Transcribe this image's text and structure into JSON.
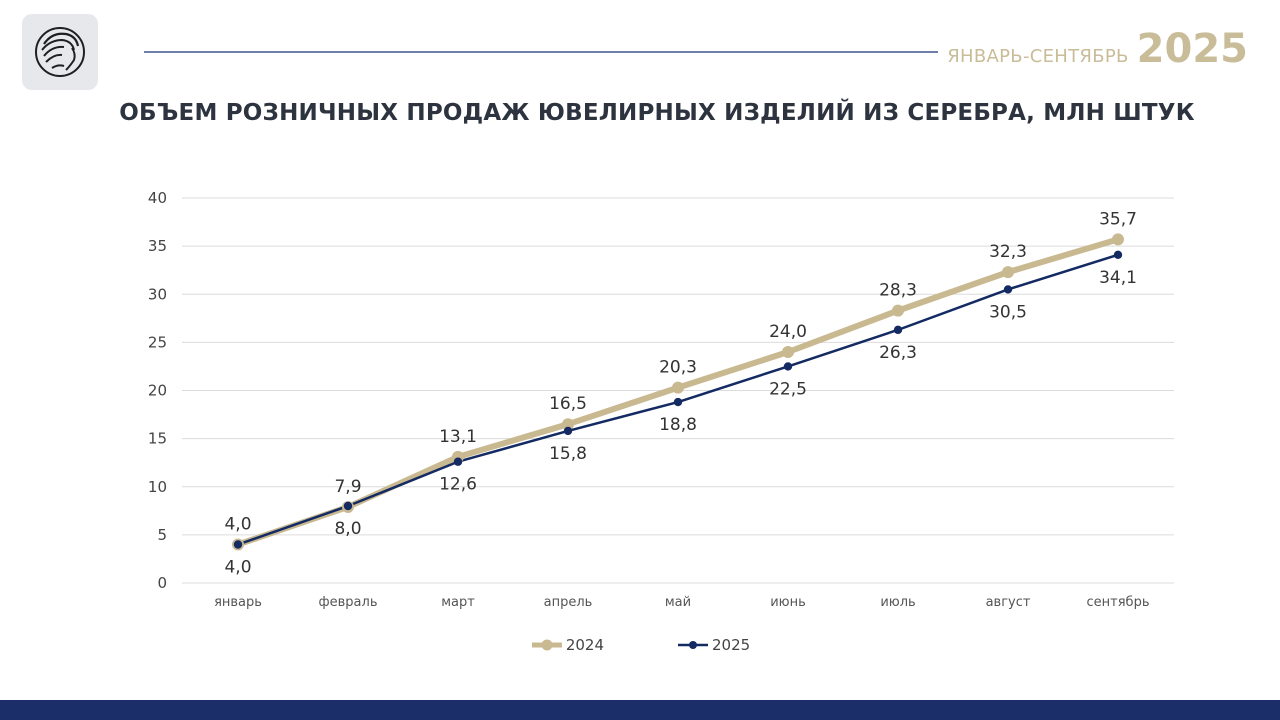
{
  "header": {
    "period_label": "ЯНВАРЬ-СЕНТЯБРЬ",
    "period_year": "2025"
  },
  "colors": {
    "series_2024": "#c9b991",
    "series_2025": "#142a63",
    "grid": "#dcdcdc",
    "footer": "#1c2e6a"
  },
  "chart_data": {
    "type": "line",
    "title": "ОБЪЕМ РОЗНИЧНЫХ ПРОДАЖ ЮВЕЛИРНЫХ ИЗДЕЛИЙ ИЗ СЕРЕБРА, МЛН ШТУК",
    "categories": [
      "январь",
      "февраль",
      "март",
      "апрель",
      "май",
      "июнь",
      "июль",
      "август",
      "сентябрь"
    ],
    "ylim": [
      0,
      40
    ],
    "yticks": [
      0,
      5,
      10,
      15,
      20,
      25,
      30,
      35,
      40
    ],
    "grid": true,
    "legend_position": "bottom",
    "series": [
      {
        "name": "2024",
        "values": [
          4.0,
          7.9,
          13.1,
          16.5,
          20.3,
          24.0,
          28.3,
          32.3,
          35.7
        ],
        "labels": [
          "4,0",
          "7,9",
          "13,1",
          "16,5",
          "20,3",
          "24,0",
          "28,3",
          "32,3",
          "35,7"
        ],
        "color": "#c9b991"
      },
      {
        "name": "2025",
        "values": [
          4.0,
          8.0,
          12.6,
          15.8,
          18.8,
          22.5,
          26.3,
          30.5,
          34.1
        ],
        "labels": [
          "4,0",
          "8,0",
          "12,6",
          "15,8",
          "18,8",
          "22,5",
          "26,3",
          "30,5",
          "34,1"
        ],
        "color": "#142a63"
      }
    ]
  }
}
